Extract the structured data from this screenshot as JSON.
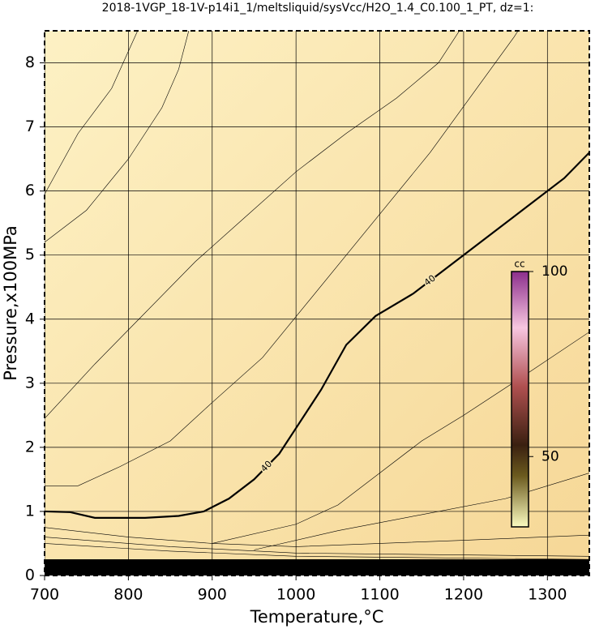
{
  "chart_data": {
    "type": "contour",
    "title": "2018-1VGP_18-1V-p14i1_1/meltsliquid/sysVcc/H2O_1.4_C0.100_1_PT, dz=1:",
    "x_label": "Temperature,°C",
    "y_label": "Pressure,x100MPa",
    "xlim": [
      700,
      1350
    ],
    "ylim": [
      0,
      8.5
    ],
    "xticks": [
      700,
      800,
      900,
      1000,
      1100,
      1200,
      1300
    ],
    "yticks": [
      0,
      1,
      2,
      3,
      4,
      5,
      6,
      7,
      8
    ],
    "grid": true,
    "contours": [
      {
        "label": "40",
        "width": 2.2,
        "x": [
          700,
          730,
          760,
          820,
          860,
          890,
          920,
          950,
          980,
          1000,
          1030,
          1060,
          1095,
          1140,
          1180,
          1230,
          1270,
          1320,
          1350
        ],
        "y": [
          1.0,
          0.99,
          0.9,
          0.9,
          0.93,
          1.0,
          1.2,
          1.5,
          1.9,
          2.3,
          2.9,
          3.6,
          4.05,
          4.4,
          4.8,
          5.3,
          5.7,
          6.2,
          6.6
        ]
      },
      {
        "width": 0.6,
        "x": [
          700,
          760,
          820,
          880,
          940,
          1000,
          1060,
          1120,
          1170,
          1195
        ],
        "y": [
          2.45,
          3.3,
          4.1,
          4.9,
          5.6,
          6.3,
          6.9,
          7.45,
          8.0,
          8.5
        ]
      },
      {
        "width": 0.6,
        "x": [
          700,
          750,
          800,
          840,
          860,
          872
        ],
        "y": [
          5.2,
          5.7,
          6.5,
          7.3,
          7.9,
          8.5
        ]
      },
      {
        "width": 0.6,
        "x": [
          700,
          740,
          780,
          811
        ],
        "y": [
          5.95,
          6.9,
          7.6,
          8.5
        ]
      },
      {
        "width": 0.6,
        "x": [
          700,
          740,
          790,
          850,
          900,
          960,
          1010,
          1060,
          1110,
          1160,
          1210,
          1260,
          1265
        ],
        "y": [
          1.4,
          1.4,
          1.7,
          2.1,
          2.7,
          3.4,
          4.2,
          5.0,
          5.8,
          6.6,
          7.5,
          8.4,
          8.5
        ]
      },
      {
        "width": 0.6,
        "x": [
          900,
          1000,
          1050,
          1100,
          1150,
          1200,
          1270,
          1350
        ],
        "y": [
          0.5,
          0.8,
          1.1,
          1.6,
          2.1,
          2.5,
          3.1,
          3.8
        ]
      },
      {
        "width": 0.6,
        "x": [
          950,
          1050,
          1150,
          1250,
          1350
        ],
        "y": [
          0.4,
          0.7,
          0.95,
          1.2,
          1.6
        ]
      },
      {
        "width": 0.6,
        "x": [
          700,
          800,
          900,
          1000,
          1100,
          1200,
          1350
        ],
        "y": [
          0.75,
          0.6,
          0.5,
          0.45,
          0.5,
          0.55,
          0.63
        ]
      },
      {
        "width": 0.6,
        "x": [
          700,
          850,
          1000,
          1350
        ],
        "y": [
          0.6,
          0.45,
          0.35,
          0.3
        ]
      },
      {
        "width": 0.6,
        "x": [
          700,
          850,
          1000,
          1350
        ],
        "y": [
          0.5,
          0.38,
          0.3,
          0.25
        ]
      }
    ],
    "colorbar": {
      "title": "cc",
      "lim": [
        31,
        100
      ],
      "ticks": [
        50,
        100
      ]
    }
  }
}
